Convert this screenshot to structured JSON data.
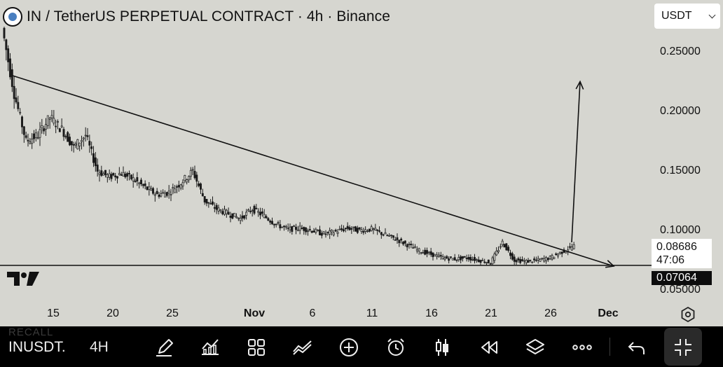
{
  "header": {
    "title": "IN / TetherUS PERPETUAL CONTRACT · 4h · Binance",
    "currency": "USDT",
    "logo_icon": "coin-logo-icon"
  },
  "price_axis": {
    "ticks": [
      "0.25000",
      "0.20000",
      "0.15000",
      "0.10000",
      "0.05000"
    ],
    "current_price": "0.08686",
    "countdown": "47:06",
    "line_price": "0.07064"
  },
  "time_axis": {
    "ticks": [
      "15",
      "20",
      "25",
      "Nov",
      "6",
      "11",
      "16",
      "21",
      "26",
      "Dec"
    ]
  },
  "watermark": "TV",
  "toolbar": {
    "symbol": "INUSDT.",
    "interval": "4H",
    "ghost_text": "RECALL",
    "tools": [
      "pencil-icon",
      "indicators-icon",
      "layouts-icon",
      "chart-type-icon",
      "add-icon",
      "alert-icon",
      "candles-icon",
      "replay-icon",
      "layers-icon",
      "more-icon",
      "undo-icon",
      "fullscreen-icon"
    ]
  },
  "chart_data": {
    "type": "candlestick",
    "symbol": "INUSDT",
    "timeframe": "4h",
    "x": [
      "Oct 11",
      "Oct 12",
      "Oct 13",
      "Oct 14",
      "Oct 15",
      "Oct 16",
      "Oct 17",
      "Oct 18",
      "Oct 19",
      "Oct 20",
      "Oct 21",
      "Oct 22",
      "Oct 23",
      "Oct 24",
      "Oct 25",
      "Oct 26",
      "Oct 27",
      "Oct 28",
      "Oct 29",
      "Oct 30",
      "Oct 31",
      "Nov 1",
      "Nov 2",
      "Nov 3",
      "Nov 4",
      "Nov 5",
      "Nov 6",
      "Nov 7",
      "Nov 8",
      "Nov 9",
      "Nov 10",
      "Nov 11",
      "Nov 12",
      "Nov 13",
      "Nov 14",
      "Nov 15",
      "Nov 16",
      "Nov 17",
      "Nov 18",
      "Nov 19",
      "Nov 20",
      "Nov 21",
      "Nov 22",
      "Nov 23",
      "Nov 24",
      "Nov 25",
      "Nov 26",
      "Nov 27"
    ],
    "close": [
      0.215,
      0.175,
      0.18,
      0.195,
      0.185,
      0.17,
      0.18,
      0.15,
      0.145,
      0.148,
      0.143,
      0.136,
      0.13,
      0.132,
      0.14,
      0.15,
      0.125,
      0.118,
      0.114,
      0.11,
      0.118,
      0.112,
      0.105,
      0.101,
      0.102,
      0.1,
      0.097,
      0.099,
      0.102,
      0.1,
      0.101,
      0.097,
      0.093,
      0.088,
      0.083,
      0.08,
      0.077,
      0.076,
      0.077,
      0.075,
      0.073,
      0.09,
      0.075,
      0.074,
      0.075,
      0.077,
      0.082,
      0.087
    ],
    "ylim": [
      0.05,
      0.27
    ],
    "annotations": [
      {
        "type": "trendline",
        "from": [
          "Oct 11",
          0.23
        ],
        "to": [
          "Nov 30",
          0.07
        ]
      },
      {
        "type": "horizontal-line",
        "price": 0.07064
      },
      {
        "type": "arrow",
        "direction": "up",
        "from": [
          "Nov 28",
          0.09
        ],
        "to": [
          "Nov 28",
          0.225
        ]
      }
    ]
  }
}
